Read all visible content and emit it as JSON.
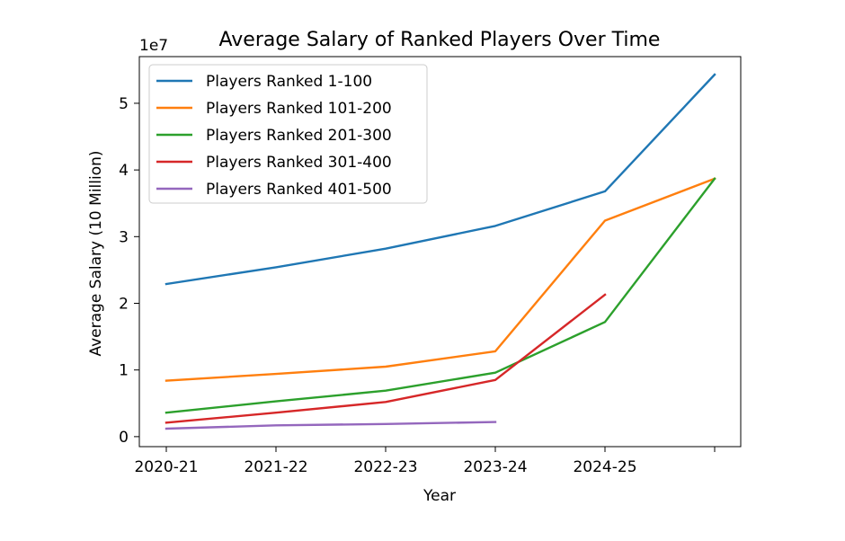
{
  "chart_data": {
    "type": "line",
    "title": "Average Salary of Ranked Players Over Time",
    "xlabel": "Year",
    "ylabel": "Average Salary (10 Million)",
    "y_offset_label": "1e7",
    "x": [
      "2020-21",
      "2021-22",
      "2022-23",
      "2023-24",
      "2024-25",
      ""
    ],
    "xtick_labels": [
      "2020-21",
      "2021-22",
      "2022-23",
      "2023-24",
      "2024-25",
      ""
    ],
    "yticks": [
      0,
      1,
      2,
      3,
      4,
      5
    ],
    "ylim": [
      -0.15,
      5.7
    ],
    "grid": false,
    "legend_position": "upper-left",
    "series": [
      {
        "name": "Players Ranked 1-100",
        "color": "#1f77b4",
        "values": [
          2.29,
          2.54,
          2.82,
          3.16,
          3.68,
          5.43
        ]
      },
      {
        "name": "Players Ranked 101-200",
        "color": "#ff7f0e",
        "values": [
          0.84,
          0.94,
          1.05,
          1.28,
          3.24,
          3.87
        ]
      },
      {
        "name": "Players Ranked 201-300",
        "color": "#2ca02c",
        "values": [
          0.36,
          0.53,
          0.69,
          0.96,
          1.72,
          3.87
        ]
      },
      {
        "name": "Players Ranked 301-400",
        "color": "#d62728",
        "values": [
          0.21,
          0.36,
          0.52,
          0.85,
          2.13,
          null
        ]
      },
      {
        "name": "Players Ranked 401-500",
        "color": "#9467bd",
        "values": [
          0.12,
          0.17,
          0.19,
          0.22,
          null,
          null
        ]
      }
    ]
  }
}
